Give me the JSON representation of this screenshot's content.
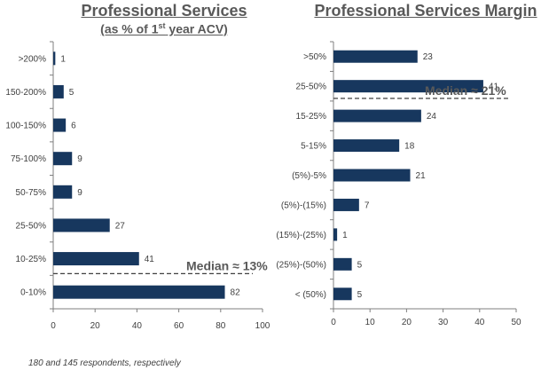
{
  "chart_data": [
    {
      "type": "bar",
      "orientation": "horizontal",
      "title": "Professional Services",
      "subtitle": "(as % of 1st year ACV)",
      "subtitle_parts": [
        "(as % of 1",
        "st",
        " year ACV)"
      ],
      "categories": [
        ">200%",
        "150-200%",
        "100-150%",
        "75-100%",
        "50-75%",
        "25-50%",
        "10-25%",
        "0-10%"
      ],
      "values": [
        1,
        5,
        6,
        9,
        9,
        27,
        41,
        82
      ],
      "xlim": [
        0,
        100
      ],
      "xticks": [
        0,
        20,
        40,
        60,
        80,
        100
      ],
      "color": "#17375e",
      "annotation": "Median ≈ 13%",
      "median_between": [
        "10-25%",
        "0-10%"
      ]
    },
    {
      "type": "bar",
      "orientation": "horizontal",
      "title": "Professional Services Margin",
      "categories": [
        ">50%",
        "25-50%",
        "15-25%",
        "5-15%",
        "(5%)-5%",
        "(5%)-(15%)",
        "(15%)-(25%)",
        "(25%)-(50%)",
        "< (50%)"
      ],
      "values": [
        23,
        41,
        24,
        18,
        21,
        7,
        1,
        5,
        5
      ],
      "xlim": [
        0,
        50
      ],
      "xticks": [
        0,
        10,
        20,
        30,
        40,
        50
      ],
      "color": "#17375e",
      "annotation": "Median ≈ 21%",
      "median_between": [
        "25-50%",
        "15-25%"
      ]
    }
  ],
  "footnote": "180 and 145 respondents, respectively"
}
